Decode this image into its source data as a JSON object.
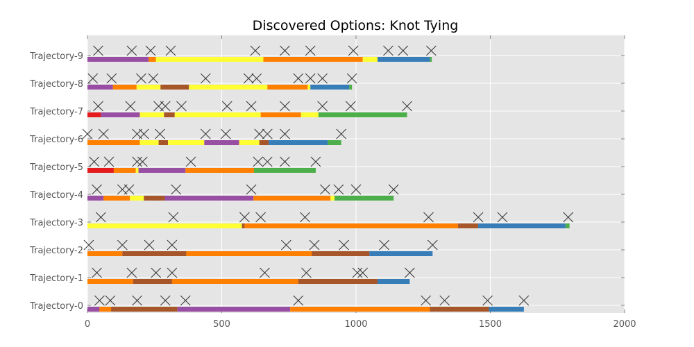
{
  "chart_data": {
    "type": "timeline",
    "title": "Discovered Options: Knot Tying",
    "xlabel": "",
    "ylabel": "",
    "xlim": [
      0,
      2000
    ],
    "xticks": [
      0,
      500,
      1000,
      1500,
      2000
    ],
    "grid": true,
    "legend": "none",
    "background": "#e5e5e5",
    "colors": {
      "red": "#e41a1c",
      "blue": "#377eb8",
      "green": "#4daf4a",
      "purple": "#984ea3",
      "orange": "#ff7f00",
      "yellow": "#ffff33",
      "brown": "#a65628",
      "marker": "#333333"
    },
    "trajectories": [
      {
        "label": "Trajectory-0",
        "segments": [
          {
            "start": 0,
            "end": 45,
            "color": "purple"
          },
          {
            "start": 45,
            "end": 88,
            "color": "orange"
          },
          {
            "start": 88,
            "end": 335,
            "color": "brown"
          },
          {
            "start": 335,
            "end": 755,
            "color": "purple"
          },
          {
            "start": 755,
            "end": 1275,
            "color": "orange"
          },
          {
            "start": 1275,
            "end": 1495,
            "color": "brown"
          },
          {
            "start": 1495,
            "end": 1625,
            "color": "blue"
          }
        ],
        "markers": [
          45,
          85,
          185,
          290,
          365,
          785,
          1260,
          1330,
          1490,
          1625
        ]
      },
      {
        "label": "Trajectory-1",
        "segments": [
          {
            "start": 0,
            "end": 170,
            "color": "orange"
          },
          {
            "start": 170,
            "end": 315,
            "color": "brown"
          },
          {
            "start": 315,
            "end": 785,
            "color": "orange"
          },
          {
            "start": 785,
            "end": 1080,
            "color": "brown"
          },
          {
            "start": 1080,
            "end": 1200,
            "color": "blue"
          }
        ],
        "markers": [
          35,
          165,
          255,
          315,
          660,
          815,
          1005,
          1025,
          1200
        ]
      },
      {
        "label": "Trajectory-2",
        "segments": [
          {
            "start": 0,
            "end": 130,
            "color": "orange"
          },
          {
            "start": 130,
            "end": 368,
            "color": "brown"
          },
          {
            "start": 368,
            "end": 835,
            "color": "orange"
          },
          {
            "start": 835,
            "end": 1050,
            "color": "brown"
          },
          {
            "start": 1050,
            "end": 1285,
            "color": "blue"
          }
        ],
        "markers": [
          5,
          130,
          230,
          315,
          740,
          845,
          955,
          1105,
          1285
        ]
      },
      {
        "label": "Trajectory-3",
        "segments": [
          {
            "start": 0,
            "end": 575,
            "color": "yellow"
          },
          {
            "start": 575,
            "end": 585,
            "color": "brown"
          },
          {
            "start": 585,
            "end": 1380,
            "color": "orange"
          },
          {
            "start": 1380,
            "end": 1455,
            "color": "brown"
          },
          {
            "start": 1455,
            "end": 1780,
            "color": "blue"
          },
          {
            "start": 1780,
            "end": 1795,
            "color": "green"
          }
        ],
        "markers": [
          50,
          320,
          585,
          645,
          810,
          1270,
          1455,
          1545,
          1790
        ]
      },
      {
        "label": "Trajectory-4",
        "segments": [
          {
            "start": 0,
            "end": 60,
            "color": "purple"
          },
          {
            "start": 60,
            "end": 158,
            "color": "orange"
          },
          {
            "start": 158,
            "end": 210,
            "color": "yellow"
          },
          {
            "start": 210,
            "end": 288,
            "color": "brown"
          },
          {
            "start": 288,
            "end": 618,
            "color": "purple"
          },
          {
            "start": 618,
            "end": 905,
            "color": "orange"
          },
          {
            "start": 905,
            "end": 920,
            "color": "yellow"
          },
          {
            "start": 920,
            "end": 1140,
            "color": "green"
          }
        ],
        "markers": [
          35,
          130,
          155,
          330,
          610,
          885,
          935,
          1000,
          1140
        ]
      },
      {
        "label": "Trajectory-5",
        "segments": [
          {
            "start": 0,
            "end": 98,
            "color": "red"
          },
          {
            "start": 98,
            "end": 180,
            "color": "orange"
          },
          {
            "start": 180,
            "end": 190,
            "color": "yellow"
          },
          {
            "start": 190,
            "end": 365,
            "color": "purple"
          },
          {
            "start": 365,
            "end": 620,
            "color": "orange"
          },
          {
            "start": 620,
            "end": 850,
            "color": "green"
          }
        ],
        "markers": [
          25,
          80,
          185,
          205,
          385,
          635,
          670,
          735,
          850
        ]
      },
      {
        "label": "Trajectory-6",
        "segments": [
          {
            "start": 0,
            "end": 195,
            "color": "orange"
          },
          {
            "start": 195,
            "end": 265,
            "color": "yellow"
          },
          {
            "start": 265,
            "end": 300,
            "color": "brown"
          },
          {
            "start": 300,
            "end": 435,
            "color": "yellow"
          },
          {
            "start": 435,
            "end": 565,
            "color": "purple"
          },
          {
            "start": 565,
            "end": 640,
            "color": "yellow"
          },
          {
            "start": 640,
            "end": 675,
            "color": "brown"
          },
          {
            "start": 675,
            "end": 895,
            "color": "blue"
          },
          {
            "start": 895,
            "end": 945,
            "color": "green"
          }
        ],
        "markers": [
          0,
          60,
          185,
          210,
          270,
          440,
          515,
          640,
          670,
          735,
          945
        ]
      },
      {
        "label": "Trajectory-7",
        "segments": [
          {
            "start": 0,
            "end": 50,
            "color": "red"
          },
          {
            "start": 50,
            "end": 195,
            "color": "purple"
          },
          {
            "start": 195,
            "end": 285,
            "color": "yellow"
          },
          {
            "start": 285,
            "end": 325,
            "color": "brown"
          },
          {
            "start": 325,
            "end": 645,
            "color": "yellow"
          },
          {
            "start": 645,
            "end": 795,
            "color": "orange"
          },
          {
            "start": 795,
            "end": 860,
            "color": "yellow"
          },
          {
            "start": 860,
            "end": 1190,
            "color": "green"
          }
        ],
        "markers": [
          40,
          160,
          265,
          290,
          350,
          520,
          610,
          735,
          875,
          980,
          1190
        ]
      },
      {
        "label": "Trajectory-8",
        "segments": [
          {
            "start": 0,
            "end": 95,
            "color": "purple"
          },
          {
            "start": 95,
            "end": 183,
            "color": "orange"
          },
          {
            "start": 183,
            "end": 272,
            "color": "yellow"
          },
          {
            "start": 272,
            "end": 378,
            "color": "brown"
          },
          {
            "start": 378,
            "end": 670,
            "color": "yellow"
          },
          {
            "start": 670,
            "end": 820,
            "color": "orange"
          },
          {
            "start": 820,
            "end": 830,
            "color": "yellow"
          },
          {
            "start": 830,
            "end": 975,
            "color": "blue"
          },
          {
            "start": 975,
            "end": 985,
            "color": "green"
          }
        ],
        "markers": [
          20,
          90,
          200,
          245,
          440,
          600,
          630,
          785,
          830,
          875,
          985
        ]
      },
      {
        "label": "Trajectory-9",
        "segments": [
          {
            "start": 0,
            "end": 228,
            "color": "purple"
          },
          {
            "start": 228,
            "end": 255,
            "color": "orange"
          },
          {
            "start": 255,
            "end": 655,
            "color": "yellow"
          },
          {
            "start": 655,
            "end": 1025,
            "color": "orange"
          },
          {
            "start": 1025,
            "end": 1080,
            "color": "yellow"
          },
          {
            "start": 1080,
            "end": 1275,
            "color": "blue"
          },
          {
            "start": 1275,
            "end": 1282,
            "color": "green"
          }
        ],
        "markers": [
          40,
          165,
          235,
          310,
          625,
          735,
          830,
          990,
          1120,
          1175,
          1280
        ]
      }
    ]
  }
}
